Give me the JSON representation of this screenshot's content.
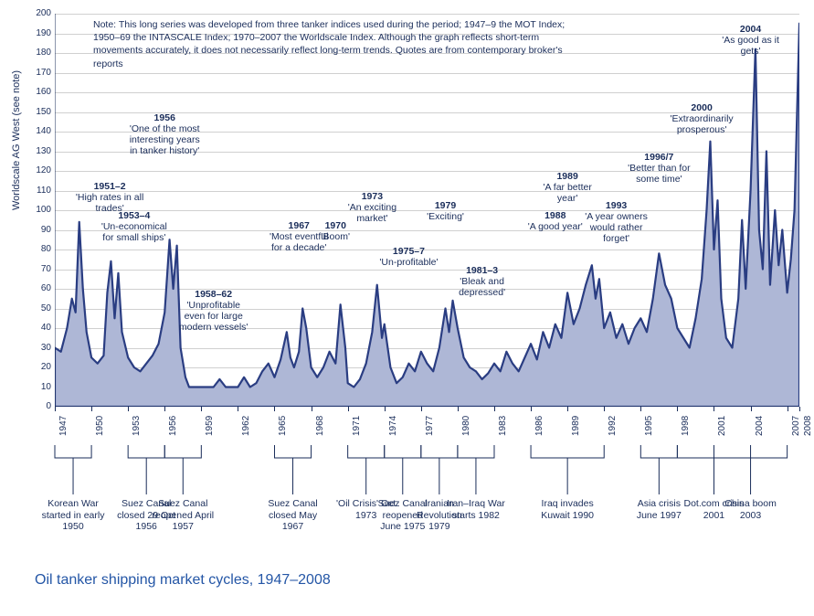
{
  "chart": {
    "type": "area",
    "title": "Oil tanker shipping market cycles, 1947–2008",
    "title_color": "#2456a6",
    "title_fontsize": 16,
    "background_color": "#ffffff",
    "series_fill": "#aeb7d6",
    "series_stroke": "#2a3d82",
    "series_stroke_width": 2.2,
    "grid_color": "#d0d0d0",
    "axis_color": "#1a2d5a",
    "text_color": "#1a2d5a",
    "font_family": "Arial",
    "ylabel": "Worldscale AG West (see note)",
    "ylabel_fontsize": 11,
    "ylim": [
      0,
      200
    ],
    "ytick_step": 10,
    "xlim": [
      1947,
      2008
    ],
    "xtick_step": 3,
    "x_extra_ticks": [
      2008
    ],
    "note": "Note: This long series was developed from three tanker indices used during the period; 1947–9 the MOT Index; 1950–69 the INTASCALE Index; 1970–2007 the Worldscale Index. Although the graph reflects short-term movements accurately, it does not necessarily reflect long-term trends. Quotes are from contemporary broker's reports",
    "note_fontsize": 10.5,
    "annotations": [
      {
        "year": 1951.5,
        "label_bold": "1951–2",
        "label": "'High rates in all trades'",
        "yposition": 115
      },
      {
        "year": 1953.5,
        "label_bold": "1953–4",
        "label": "'Un-economical for small ships'",
        "yposition": 100
      },
      {
        "year": 1956,
        "label_bold": "1956",
        "label": "'One of the most interesting years in tanker history'",
        "yposition": 150
      },
      {
        "year": 1960,
        "label_bold": "1958–62",
        "label": "'Unprofitable even for large modern vessels'",
        "yposition": 60
      },
      {
        "year": 1967,
        "label_bold": "1967",
        "label": "'Most eventful for a decade'",
        "yposition": 95
      },
      {
        "year": 1970,
        "label_bold": "1970",
        "label": "'Boom'",
        "yposition": 95
      },
      {
        "year": 1973,
        "label_bold": "1973",
        "label": "'An exciting market'",
        "yposition": 110
      },
      {
        "year": 1976,
        "label_bold": "1975–7",
        "label": "'Un-profitable'",
        "yposition": 82
      },
      {
        "year": 1979,
        "label_bold": "1979",
        "label": "'Exciting'",
        "yposition": 105
      },
      {
        "year": 1982,
        "label_bold": "1981–3",
        "label": "'Bleak and depressed'",
        "yposition": 72
      },
      {
        "year": 1988,
        "label_bold": "1988",
        "label": "'A good year'",
        "yposition": 100
      },
      {
        "year": 1989,
        "label_bold": "1989",
        "label": "'A far better year'",
        "yposition": 120
      },
      {
        "year": 1993,
        "label_bold": "1993",
        "label": "'A year owners would rather forget'",
        "yposition": 105
      },
      {
        "year": 1996.5,
        "label_bold": "1996/7",
        "label": "'Better than for some time'",
        "yposition": 130
      },
      {
        "year": 2000,
        "label_bold": "2000",
        "label": "'Extraordinarily prosperous'",
        "yposition": 155
      },
      {
        "year": 2004,
        "label_bold": "2004",
        "label": "'As good as it gets'",
        "yposition": 195
      }
    ],
    "events": [
      {
        "range": [
          1947,
          1950
        ],
        "label": "Korean War started in early 1950"
      },
      {
        "range": [
          1953,
          1956
        ],
        "label": "Suez Canal closed 29 Oct 1956"
      },
      {
        "range": [
          1956,
          1959
        ],
        "label": "Suez Canal reopened April 1957"
      },
      {
        "range": [
          1965,
          1968
        ],
        "label": "Suez Canal closed May 1967"
      },
      {
        "range": [
          1971,
          1974
        ],
        "label": "'Oil Crisis' Oct 1973"
      },
      {
        "range": [
          1974,
          1977
        ],
        "label": "Suez Canal reopened June 1975"
      },
      {
        "range": [
          1977,
          1980
        ],
        "label": "Iranian Revolution 1979"
      },
      {
        "range": [
          1980,
          1983
        ],
        "label": "Iran–Iraq War starts 1982"
      },
      {
        "range": [
          1986,
          1992
        ],
        "label": "Iraq invades Kuwait 1990"
      },
      {
        "range": [
          1995,
          1998
        ],
        "label": "Asia crisis June 1997"
      },
      {
        "range": [
          1998,
          2004
        ],
        "label": "Dot.com crisis 2001"
      },
      {
        "range": [
          2001,
          2007
        ],
        "label": "China boom 2003"
      }
    ],
    "data": [
      {
        "x": 1947.0,
        "y": 30
      },
      {
        "x": 1947.5,
        "y": 28
      },
      {
        "x": 1948.0,
        "y": 40
      },
      {
        "x": 1948.4,
        "y": 55
      },
      {
        "x": 1948.7,
        "y": 48
      },
      {
        "x": 1949.0,
        "y": 94
      },
      {
        "x": 1949.3,
        "y": 60
      },
      {
        "x": 1949.6,
        "y": 38
      },
      {
        "x": 1950.0,
        "y": 25
      },
      {
        "x": 1950.5,
        "y": 22
      },
      {
        "x": 1951.0,
        "y": 26
      },
      {
        "x": 1951.3,
        "y": 58
      },
      {
        "x": 1951.6,
        "y": 74
      },
      {
        "x": 1951.9,
        "y": 45
      },
      {
        "x": 1952.2,
        "y": 68
      },
      {
        "x": 1952.5,
        "y": 38
      },
      {
        "x": 1953.0,
        "y": 25
      },
      {
        "x": 1953.5,
        "y": 20
      },
      {
        "x": 1954.0,
        "y": 18
      },
      {
        "x": 1954.5,
        "y": 22
      },
      {
        "x": 1955.0,
        "y": 26
      },
      {
        "x": 1955.5,
        "y": 32
      },
      {
        "x": 1956.0,
        "y": 48
      },
      {
        "x": 1956.4,
        "y": 85
      },
      {
        "x": 1956.7,
        "y": 60
      },
      {
        "x": 1957.0,
        "y": 82
      },
      {
        "x": 1957.3,
        "y": 30
      },
      {
        "x": 1957.7,
        "y": 15
      },
      {
        "x": 1958.0,
        "y": 10
      },
      {
        "x": 1959.0,
        "y": 10
      },
      {
        "x": 1960.0,
        "y": 10
      },
      {
        "x": 1960.5,
        "y": 14
      },
      {
        "x": 1961.0,
        "y": 10
      },
      {
        "x": 1962.0,
        "y": 10
      },
      {
        "x": 1962.5,
        "y": 15
      },
      {
        "x": 1963.0,
        "y": 10
      },
      {
        "x": 1963.5,
        "y": 12
      },
      {
        "x": 1964.0,
        "y": 18
      },
      {
        "x": 1964.5,
        "y": 22
      },
      {
        "x": 1965.0,
        "y": 15
      },
      {
        "x": 1965.5,
        "y": 24
      },
      {
        "x": 1966.0,
        "y": 38
      },
      {
        "x": 1966.3,
        "y": 25
      },
      {
        "x": 1966.6,
        "y": 20
      },
      {
        "x": 1967.0,
        "y": 28
      },
      {
        "x": 1967.3,
        "y": 50
      },
      {
        "x": 1967.6,
        "y": 40
      },
      {
        "x": 1968.0,
        "y": 20
      },
      {
        "x": 1968.5,
        "y": 15
      },
      {
        "x": 1969.0,
        "y": 20
      },
      {
        "x": 1969.5,
        "y": 28
      },
      {
        "x": 1970.0,
        "y": 22
      },
      {
        "x": 1970.4,
        "y": 52
      },
      {
        "x": 1970.8,
        "y": 30
      },
      {
        "x": 1971.0,
        "y": 12
      },
      {
        "x": 1971.5,
        "y": 10
      },
      {
        "x": 1972.0,
        "y": 14
      },
      {
        "x": 1972.5,
        "y": 22
      },
      {
        "x": 1973.0,
        "y": 38
      },
      {
        "x": 1973.4,
        "y": 62
      },
      {
        "x": 1973.8,
        "y": 35
      },
      {
        "x": 1974.0,
        "y": 42
      },
      {
        "x": 1974.5,
        "y": 20
      },
      {
        "x": 1975.0,
        "y": 12
      },
      {
        "x": 1975.5,
        "y": 15
      },
      {
        "x": 1976.0,
        "y": 22
      },
      {
        "x": 1976.5,
        "y": 18
      },
      {
        "x": 1977.0,
        "y": 28
      },
      {
        "x": 1977.5,
        "y": 22
      },
      {
        "x": 1978.0,
        "y": 18
      },
      {
        "x": 1978.5,
        "y": 30
      },
      {
        "x": 1979.0,
        "y": 50
      },
      {
        "x": 1979.3,
        "y": 38
      },
      {
        "x": 1979.6,
        "y": 54
      },
      {
        "x": 1980.0,
        "y": 40
      },
      {
        "x": 1980.5,
        "y": 25
      },
      {
        "x": 1981.0,
        "y": 20
      },
      {
        "x": 1981.5,
        "y": 18
      },
      {
        "x": 1982.0,
        "y": 14
      },
      {
        "x": 1982.5,
        "y": 17
      },
      {
        "x": 1983.0,
        "y": 22
      },
      {
        "x": 1983.5,
        "y": 18
      },
      {
        "x": 1984.0,
        "y": 28
      },
      {
        "x": 1984.5,
        "y": 22
      },
      {
        "x": 1985.0,
        "y": 18
      },
      {
        "x": 1985.5,
        "y": 25
      },
      {
        "x": 1986.0,
        "y": 32
      },
      {
        "x": 1986.5,
        "y": 24
      },
      {
        "x": 1987.0,
        "y": 38
      },
      {
        "x": 1987.5,
        "y": 30
      },
      {
        "x": 1988.0,
        "y": 42
      },
      {
        "x": 1988.5,
        "y": 35
      },
      {
        "x": 1989.0,
        "y": 58
      },
      {
        "x": 1989.5,
        "y": 42
      },
      {
        "x": 1990.0,
        "y": 50
      },
      {
        "x": 1990.5,
        "y": 62
      },
      {
        "x": 1991.0,
        "y": 72
      },
      {
        "x": 1991.3,
        "y": 55
      },
      {
        "x": 1991.6,
        "y": 65
      },
      {
        "x": 1992.0,
        "y": 40
      },
      {
        "x": 1992.5,
        "y": 48
      },
      {
        "x": 1993.0,
        "y": 35
      },
      {
        "x": 1993.5,
        "y": 42
      },
      {
        "x": 1994.0,
        "y": 32
      },
      {
        "x": 1994.5,
        "y": 40
      },
      {
        "x": 1995.0,
        "y": 45
      },
      {
        "x": 1995.5,
        "y": 38
      },
      {
        "x": 1996.0,
        "y": 55
      },
      {
        "x": 1996.5,
        "y": 78
      },
      {
        "x": 1997.0,
        "y": 62
      },
      {
        "x": 1997.5,
        "y": 55
      },
      {
        "x": 1998.0,
        "y": 40
      },
      {
        "x": 1998.5,
        "y": 35
      },
      {
        "x": 1999.0,
        "y": 30
      },
      {
        "x": 1999.5,
        "y": 45
      },
      {
        "x": 2000.0,
        "y": 65
      },
      {
        "x": 2000.4,
        "y": 100
      },
      {
        "x": 2000.7,
        "y": 135
      },
      {
        "x": 2001.0,
        "y": 80
      },
      {
        "x": 2001.3,
        "y": 105
      },
      {
        "x": 2001.6,
        "y": 55
      },
      {
        "x": 2002.0,
        "y": 35
      },
      {
        "x": 2002.5,
        "y": 30
      },
      {
        "x": 2003.0,
        "y": 55
      },
      {
        "x": 2003.3,
        "y": 95
      },
      {
        "x": 2003.6,
        "y": 60
      },
      {
        "x": 2004.0,
        "y": 110
      },
      {
        "x": 2004.4,
        "y": 182
      },
      {
        "x": 2004.7,
        "y": 90
      },
      {
        "x": 2005.0,
        "y": 70
      },
      {
        "x": 2005.3,
        "y": 130
      },
      {
        "x": 2005.6,
        "y": 62
      },
      {
        "x": 2006.0,
        "y": 100
      },
      {
        "x": 2006.3,
        "y": 72
      },
      {
        "x": 2006.6,
        "y": 90
      },
      {
        "x": 2007.0,
        "y": 58
      },
      {
        "x": 2007.3,
        "y": 75
      },
      {
        "x": 2007.6,
        "y": 100
      },
      {
        "x": 2008.0,
        "y": 195
      }
    ]
  }
}
